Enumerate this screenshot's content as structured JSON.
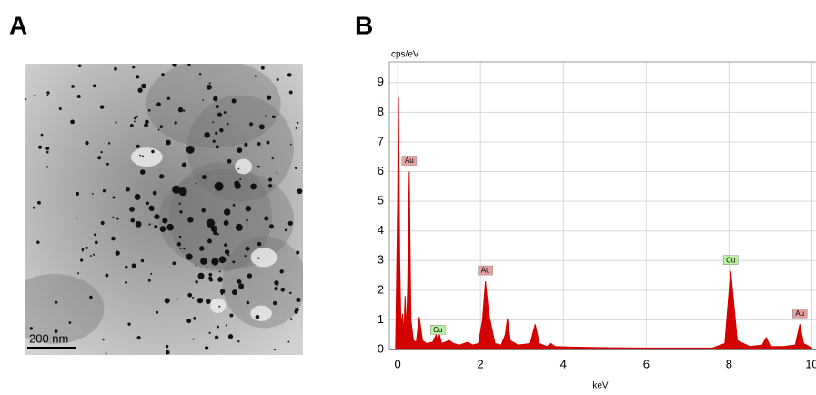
{
  "panels": {
    "a_label": "A",
    "scale_bar": "200 nm",
    "b_label": "B"
  },
  "chart_data": {
    "type": "area",
    "y_label": "cps/eV",
    "x_label": "keV",
    "color": "#d40000",
    "grid": true,
    "x": [
      -0.05,
      0.0,
      0.02,
      0.05,
      0.08,
      0.12,
      0.15,
      0.18,
      0.21,
      0.24,
      0.28,
      0.32,
      0.38,
      0.45,
      0.52,
      0.6,
      0.7,
      0.85,
      0.93,
      0.97,
      1.01,
      1.06,
      1.15,
      1.25,
      1.35,
      1.5,
      1.7,
      1.8,
      1.95,
      2.05,
      2.12,
      2.2,
      2.35,
      2.5,
      2.6,
      2.65,
      2.72,
      2.9,
      3.2,
      3.32,
      3.42,
      3.6,
      3.7,
      3.8,
      4.2,
      5,
      6,
      7,
      7.6,
      7.9,
      8.04,
      8.2,
      8.5,
      8.8,
      8.9,
      9.0,
      9.3,
      9.6,
      9.71,
      9.8,
      10.0
    ],
    "values": [
      0,
      5.0,
      8.5,
      3.0,
      0.8,
      1.2,
      0.5,
      1.8,
      0.6,
      2.0,
      6.0,
      1.0,
      0.3,
      0.25,
      1.1,
      0.3,
      0.2,
      0.25,
      0.5,
      0.3,
      0.5,
      0.2,
      0.25,
      0.3,
      0.2,
      0.15,
      0.25,
      0.15,
      0.2,
      1.0,
      2.3,
      1.2,
      0.2,
      0.15,
      0.5,
      1.05,
      0.3,
      0.15,
      0.2,
      0.85,
      0.2,
      0.1,
      0.2,
      0.1,
      0.08,
      0.06,
      0.05,
      0.05,
      0.05,
      0.2,
      2.65,
      0.3,
      0.1,
      0.15,
      0.4,
      0.1,
      0.1,
      0.15,
      0.85,
      0.2,
      0.05
    ],
    "xlim": [
      -0.2,
      10.1
    ],
    "ylim": [
      0,
      9.7
    ],
    "xticks": [
      0,
      2,
      4,
      6,
      8,
      10
    ],
    "yticks": [
      0,
      1,
      2,
      3,
      4,
      5,
      6,
      7,
      8,
      9
    ],
    "annotations": [
      {
        "text": "Au",
        "x": 0.28,
        "color": "#e8a0a0"
      },
      {
        "text": "Cu",
        "x": 0.97,
        "color": "#b8f0a0"
      },
      {
        "text": "Au",
        "x": 2.12,
        "color": "#e8a0a0"
      },
      {
        "text": "Cu",
        "x": 8.04,
        "color": "#b8f0a0"
      },
      {
        "text": "Au",
        "x": 9.71,
        "color": "#e8a0a0"
      }
    ]
  }
}
